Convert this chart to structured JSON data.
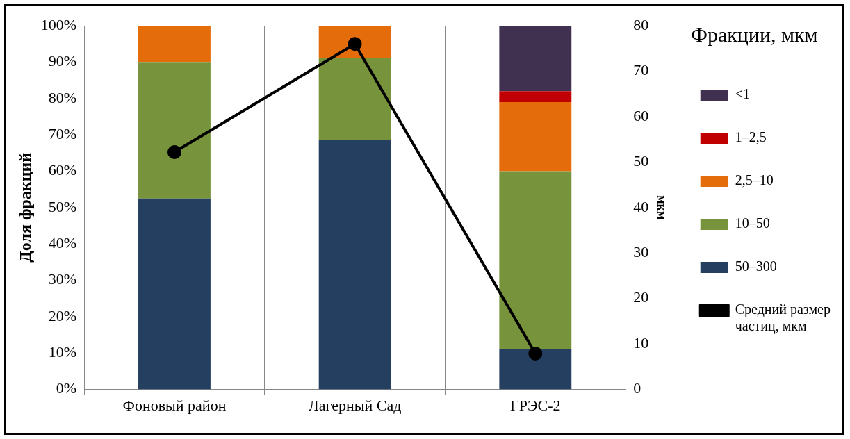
{
  "chart_data": {
    "type": "bar",
    "stacked": true,
    "ylabel": "Доля фракций",
    "y2label": "мкм",
    "legend_title": "Фракции, мкм",
    "legend": "right",
    "grid": "x",
    "categories": [
      "Фоновый район",
      "Лагерный Сад",
      "ГРЭС-2"
    ],
    "ylim": [
      0,
      100
    ],
    "yticks": [
      {
        "value": 0,
        "label": "0%"
      },
      {
        "value": 10,
        "label": "10%"
      },
      {
        "value": 20,
        "label": "20%"
      },
      {
        "value": 30,
        "label": "30%"
      },
      {
        "value": 40,
        "label": "40%"
      },
      {
        "value": 50,
        "label": "50%"
      },
      {
        "value": 60,
        "label": "60%"
      },
      {
        "value": 70,
        "label": "70%"
      },
      {
        "value": 80,
        "label": "80%"
      },
      {
        "value": 90,
        "label": "90%"
      },
      {
        "value": 100,
        "label": "100%"
      }
    ],
    "y2lim": [
      0,
      80
    ],
    "y2ticks": [
      0,
      10,
      20,
      30,
      40,
      50,
      60,
      70,
      80
    ],
    "series": [
      {
        "name": "50–300",
        "color": "#243f60",
        "values": [
          52.5,
          68.5,
          11
        ]
      },
      {
        "name": "10–50",
        "color": "#77933c",
        "values": [
          37.5,
          22.5,
          49
        ]
      },
      {
        "name": "2,5–10",
        "color": "#e46c0a",
        "values": [
          10,
          9,
          19
        ]
      },
      {
        "name": "1–2,5",
        "color": "#c00000",
        "values": [
          0,
          0,
          3
        ]
      },
      {
        "name": "<1",
        "color": "#403151",
        "values": [
          0,
          0,
          18
        ]
      },
      {
        "name": "Средний размер частиц, мкм",
        "type": "line",
        "axis": "y2",
        "color": "#000000",
        "marker": "circle",
        "line_style": "solid",
        "values": [
          52.2,
          76,
          7.9
        ]
      }
    ]
  }
}
